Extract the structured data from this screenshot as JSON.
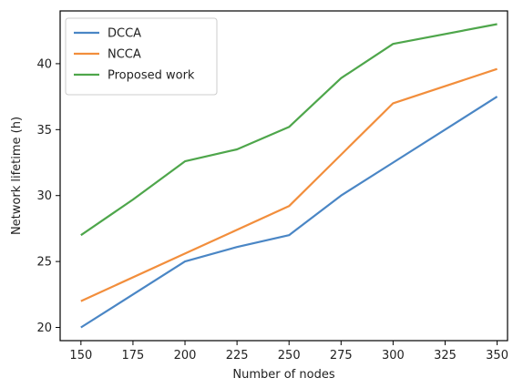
{
  "chart_data": {
    "type": "line",
    "title": "",
    "xlabel": "Number of nodes",
    "ylabel": "Network lifetime (h)",
    "x": [
      150,
      200,
      250,
      275,
      300,
      350
    ],
    "xticks": [
      150,
      175,
      200,
      225,
      250,
      275,
      300,
      325,
      350
    ],
    "yticks": [
      20,
      25,
      30,
      35,
      40
    ],
    "xlim": [
      140,
      355
    ],
    "ylim": [
      19,
      44
    ],
    "grid": false,
    "legend": "top-left",
    "series": [
      {
        "name": "DCCA",
        "color": "#4a86c5",
        "x": [
          150,
          200,
          225,
          250,
          275,
          300,
          350
        ],
        "values": [
          20,
          25,
          26.1,
          27,
          30,
          32.5,
          37.5
        ]
      },
      {
        "name": "NCCA",
        "color": "#f28e3c",
        "x": [
          150,
          200,
          250,
          300,
          350
        ],
        "values": [
          22,
          25.6,
          29.2,
          37,
          39.6
        ]
      },
      {
        "name": "Proposed work",
        "color": "#4ea64b",
        "x": [
          150,
          175,
          200,
          225,
          250,
          275,
          300,
          350
        ],
        "values": [
          27,
          29.7,
          32.6,
          33.5,
          35.2,
          38.9,
          41.5,
          43
        ]
      }
    ]
  }
}
